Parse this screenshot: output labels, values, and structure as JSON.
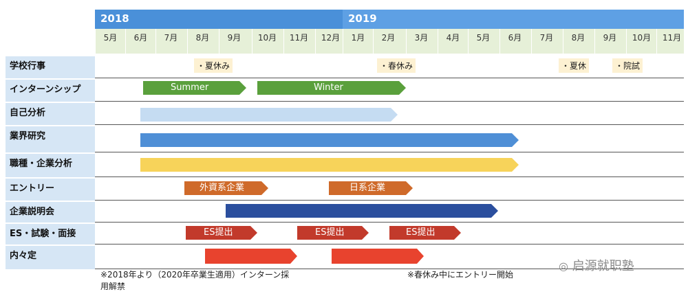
{
  "years": [
    "2018",
    "2019"
  ],
  "months": [
    "5月",
    "6月",
    "7月",
    "8月",
    "9月",
    "10月",
    "11月",
    "12月",
    "1月",
    "2月",
    "3月",
    "4月",
    "5月",
    "6月",
    "7月",
    "8月",
    "9月",
    "10月",
    "11月"
  ],
  "rows": [
    "学校行事",
    "インターンシップ",
    "自己分析",
    "業界研究",
    "職種・企業分析",
    "エントリー",
    "企業説明会",
    "ES・試験・面接",
    "内々定"
  ],
  "notes": [
    "・夏休み",
    "・春休み",
    "・夏休",
    "・院試"
  ],
  "bars": [
    {
      "label": "Summer",
      "color": "#5aa03c"
    },
    {
      "label": "Winter",
      "color": "#5aa03c"
    },
    {
      "label": "",
      "color": "#c5dcf2"
    },
    {
      "label": "",
      "color": "#4f8fd6"
    },
    {
      "label": "",
      "color": "#f7d35a"
    },
    {
      "label": "外資系企業",
      "color": "#cf6a2a"
    },
    {
      "label": "日系企業",
      "color": "#cf6a2a"
    },
    {
      "label": "",
      "color": "#2b4f9e"
    },
    {
      "label": "ES提出",
      "color": "#c23a2b"
    },
    {
      "label": "ES提出",
      "color": "#c23a2b"
    },
    {
      "label": "ES提出",
      "color": "#c23a2b"
    },
    {
      "label": "",
      "color": "#e8432e"
    },
    {
      "label": "",
      "color": "#e8432e"
    }
  ],
  "footnotes": {
    "left_line1": "※2018年より（2020年卒業生適用）インターン採",
    "left_line2": "用解禁",
    "right": "※春休み中にエントリー開始"
  },
  "watermark": "启源就职塾",
  "colors": {
    "year_band": "#4a90d9",
    "month_band": "#e6f0d8",
    "row_label_bg": "#d6e6f5",
    "note_bg": "#fdf1d2"
  }
}
